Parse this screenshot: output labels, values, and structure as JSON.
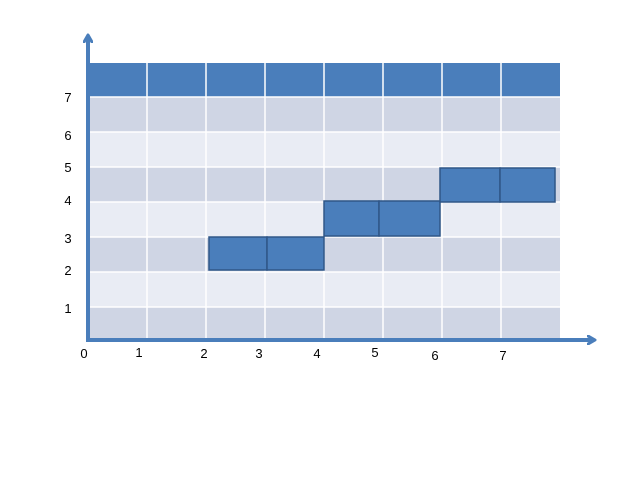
{
  "colors": {
    "header": "#4a7ebb",
    "row_dark": "#cfd5e4",
    "row_light": "#e9ecf4",
    "grid_line": "#ffffff",
    "block_fill": "#4a7ebb",
    "block_stroke": "#2f5687",
    "axis": "#4a7ebb"
  },
  "axes": {
    "x_ticks": [
      {
        "label": "0",
        "value": 0
      },
      {
        "label": "1",
        "value": 1
      },
      {
        "label": "2",
        "value": 2
      },
      {
        "label": "3",
        "value": 3
      },
      {
        "label": "4",
        "value": 4
      },
      {
        "label": "5",
        "value": 5
      },
      {
        "label": "6",
        "value": 6
      },
      {
        "label": "7",
        "value": 7
      }
    ],
    "y_ticks": [
      {
        "label": "1",
        "value": 1
      },
      {
        "label": "2",
        "value": 2
      },
      {
        "label": "3",
        "value": 3
      },
      {
        "label": "4",
        "value": 4
      },
      {
        "label": "5",
        "value": 5
      },
      {
        "label": "6",
        "value": 6
      },
      {
        "label": "7",
        "value": 7
      }
    ]
  },
  "table": {
    "columns": 8,
    "body_rows": 7
  },
  "blocks": [
    {
      "col": 2,
      "row": 2
    },
    {
      "col": 3,
      "row": 2
    },
    {
      "col": 4,
      "row": 3
    },
    {
      "col": 5,
      "row": 3
    },
    {
      "col": 6,
      "row": 4
    },
    {
      "col": 7,
      "row": 4
    }
  ]
}
